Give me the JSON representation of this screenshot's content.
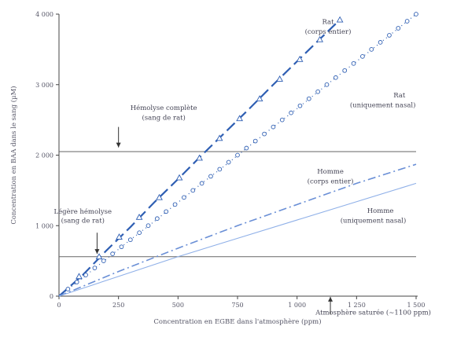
{
  "chart_data": {
    "type": "line",
    "xlabel": "Concentration en EGBE dans l'atmosphère (ppm)",
    "ylabel": "Concentration en BAA dans le sang (µM)",
    "xlim": [
      0,
      1500
    ],
    "ylim": [
      0,
      4000
    ],
    "x_ticks": [
      "0",
      "250",
      "500",
      "750",
      "1 000",
      "1 250",
      "1 500"
    ],
    "y_ticks": [
      "0",
      "1 000",
      "2 000",
      "3 000",
      "4 000"
    ],
    "series": [
      {
        "name": "Rat (corps entier)",
        "style": "dash-triangle",
        "color": "#2f5fb3",
        "x": [
          0,
          100,
          200,
          300,
          400,
          500,
          600,
          700,
          800,
          900,
          1000,
          1100,
          1180
        ],
        "y": [
          0,
          300,
          650,
          980,
          1330,
          1660,
          2000,
          2330,
          2660,
          3000,
          3330,
          3660,
          3920
        ]
      },
      {
        "name": "Rat (uniquement nasal)",
        "style": "dotted-circle",
        "color": "#2f5fb3",
        "x": [
          0,
          100,
          200,
          300,
          400,
          500,
          600,
          700,
          800,
          900,
          1000,
          1100,
          1200,
          1300,
          1400,
          1500
        ],
        "y": [
          0,
          260,
          530,
          800,
          1060,
          1330,
          1600,
          1860,
          2130,
          2400,
          2660,
          2930,
          3200,
          3460,
          3730,
          4000
        ]
      },
      {
        "name": "Homme (corps entier)",
        "style": "dash-dot",
        "color": "#6a8fd6",
        "x": [
          0,
          250,
          500,
          750,
          1000,
          1250,
          1500
        ],
        "y": [
          0,
          350,
          680,
          1000,
          1300,
          1600,
          1870
        ]
      },
      {
        "name": "Homme (uniquement nasal)",
        "style": "solid",
        "color": "#8fb0e8",
        "x": [
          0,
          250,
          500,
          750,
          1000,
          1250,
          1500
        ],
        "y": [
          0,
          280,
          560,
          820,
          1080,
          1340,
          1600
        ]
      }
    ],
    "reference_lines": [
      {
        "y": 2050
      },
      {
        "y": 560
      }
    ],
    "annotations": [
      {
        "text": "Rat",
        "x": 1130,
        "y": 3860
      },
      {
        "text": "(corps entier)",
        "x": 1130,
        "y": 3720
      },
      {
        "text": "Rat",
        "x": 1430,
        "y": 2820
      },
      {
        "text": "(uniquement nasal)",
        "x": 1360,
        "y": 2680
      },
      {
        "text": "Hémolyse complète",
        "x": 440,
        "y": 2640
      },
      {
        "text": "(sang de rat)",
        "x": 440,
        "y": 2500
      },
      {
        "text": "Homme",
        "x": 1140,
        "y": 1740
      },
      {
        "text": "(corps entier)",
        "x": 1140,
        "y": 1600
      },
      {
        "text": "Homme",
        "x": 1350,
        "y": 1180
      },
      {
        "text": "(uniquement nasal)",
        "x": 1320,
        "y": 1040
      },
      {
        "text": "Légère hémolyse",
        "x": 100,
        "y": 1170
      },
      {
        "text": "(sang de rat)",
        "x": 100,
        "y": 1040
      },
      {
        "text": "Atmosphère saturée (~1100 ppm)",
        "x": 1320,
        "y": -260
      }
    ],
    "arrows": [
      {
        "x": 250,
        "from_y": 2400,
        "to_y": 2110
      },
      {
        "x": 160,
        "from_y": 900,
        "to_y": 600
      },
      {
        "x": 1140,
        "from_y": -260,
        "to_y": -10
      }
    ],
    "grid": false,
    "legend": "none"
  }
}
